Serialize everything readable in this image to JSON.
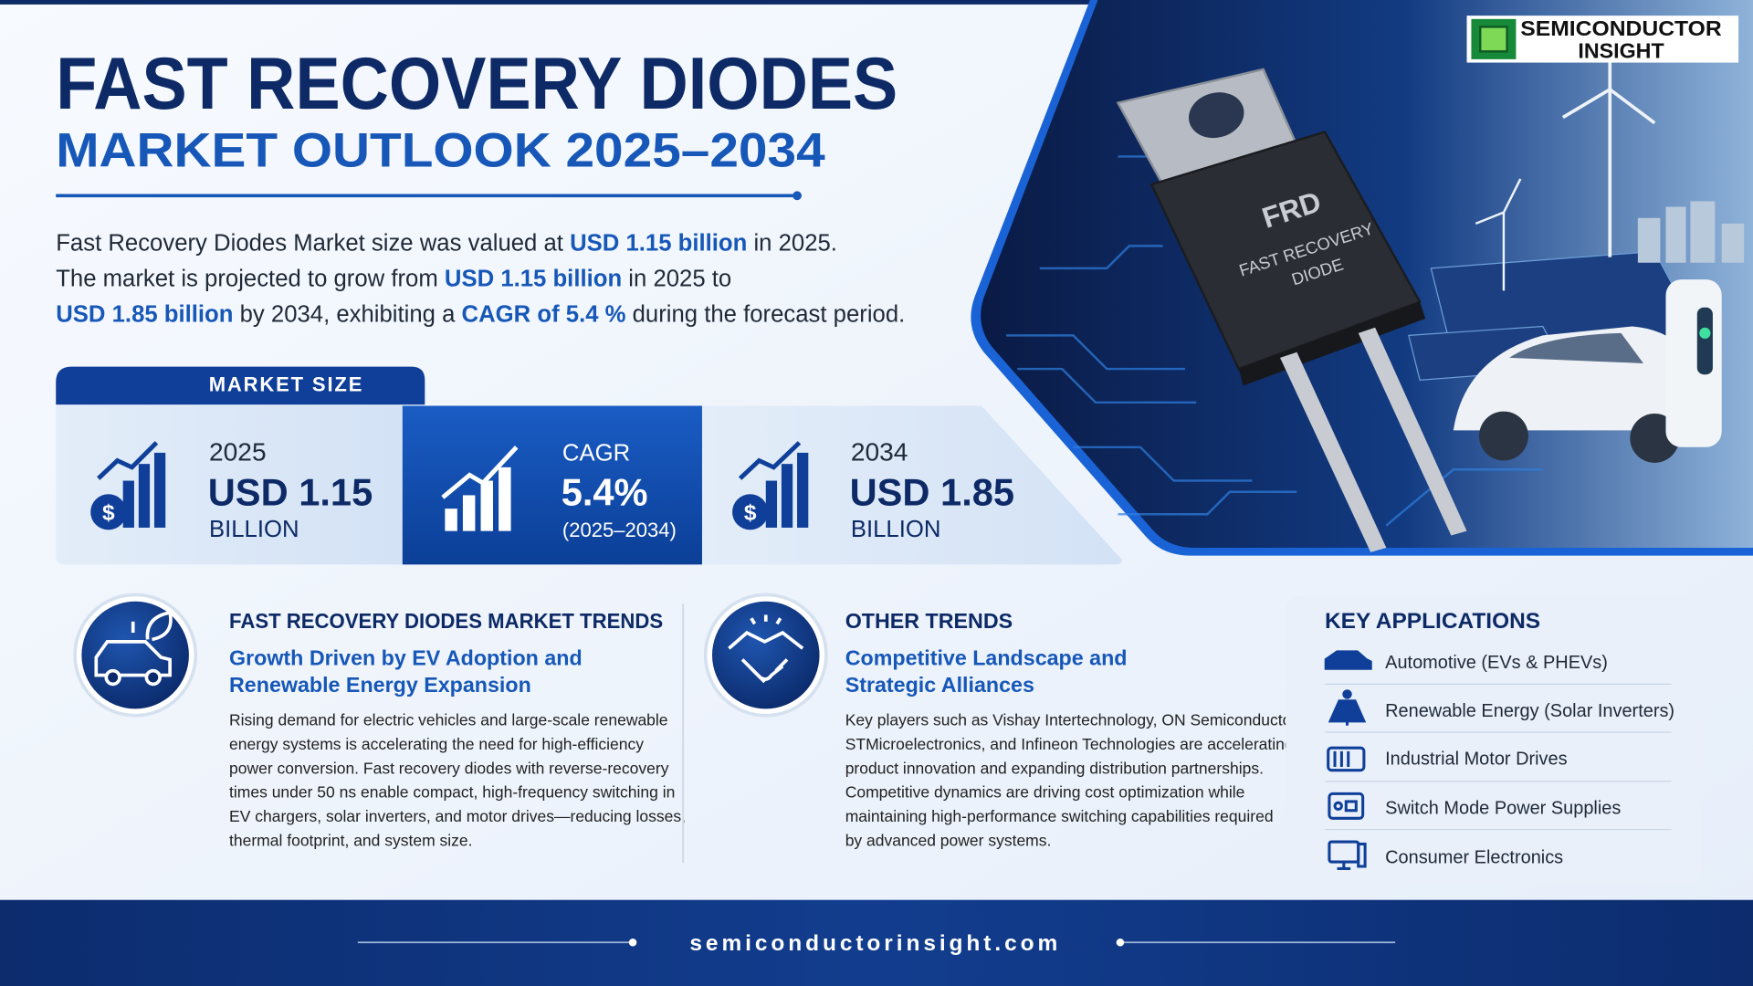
{
  "logo": {
    "line1": "SEMICONDUCTOR",
    "line2": "INSIGHT"
  },
  "header": {
    "title": "FAST RECOVERY DIODES",
    "subtitle": "MARKET OUTLOOK 2025–2034"
  },
  "intro": {
    "lines": [
      [
        "Fast Recovery Diodes Market size was valued at ",
        "USD 1.15 billion",
        " in 2025."
      ],
      [
        "The market is projected to grow from ",
        "USD 1.15 billion",
        " in 2025 to"
      ],
      [
        "USD 1.85 billion",
        " by 2034, exhibiting a ",
        "CAGR of 5.4 %",
        " during the forecast period."
      ]
    ]
  },
  "hero_image": {
    "chip_label": "FRD",
    "chip_text": [
      "FAST RECOVERY",
      "DIODE"
    ]
  },
  "market_size": {
    "label": "MARKET SIZE",
    "cards": [
      {
        "heading": "2025",
        "value": "USD 1.15",
        "unit": "BILLION"
      },
      {
        "heading": "CAGR",
        "value": "5.4%",
        "unit": "(2025–2034)"
      },
      {
        "heading": "2034",
        "value": "USD 1.85",
        "unit": "BILLION"
      }
    ]
  },
  "trends": [
    {
      "title": "FAST RECOVERY DIODES MARKET TRENDS",
      "subtitle": [
        "Growth Driven by EV Adoption and",
        "Renewable Energy Expansion"
      ],
      "body": [
        "Rising demand for electric vehicles and large-scale renewable",
        "energy systems is accelerating the need for high-efficiency",
        "power conversion. Fast recovery diodes with reverse-recovery",
        "times under 50 ns enable compact, high-frequency switching in",
        "EV chargers, solar inverters, and motor drives—reducing losses,",
        "thermal footprint, and system size."
      ]
    },
    {
      "title": "OTHER TRENDS",
      "subtitle": [
        "Competitive Landscape and",
        "Strategic Alliances"
      ],
      "body": [
        "Key players such as Vishay Intertechnology, ON Semiconductor,",
        "STMicroelectronics, and Infineon Technologies are accelerating",
        "product innovation and expanding distribution partnerships.",
        "Competitive dynamics are driving cost optimization while",
        "maintaining high-performance switching capabilities required",
        "by advanced power systems."
      ]
    }
  ],
  "key_applications": {
    "title": "KEY APPLICATIONS",
    "items": [
      "Automotive (EVs & PHEVs)",
      "Renewable Energy (Solar Inverters)",
      "Industrial Motor Drives",
      "Switch Mode Power Supplies",
      "Consumer Electronics"
    ]
  },
  "footer": {
    "url": "semiconductorinsight.com"
  }
}
